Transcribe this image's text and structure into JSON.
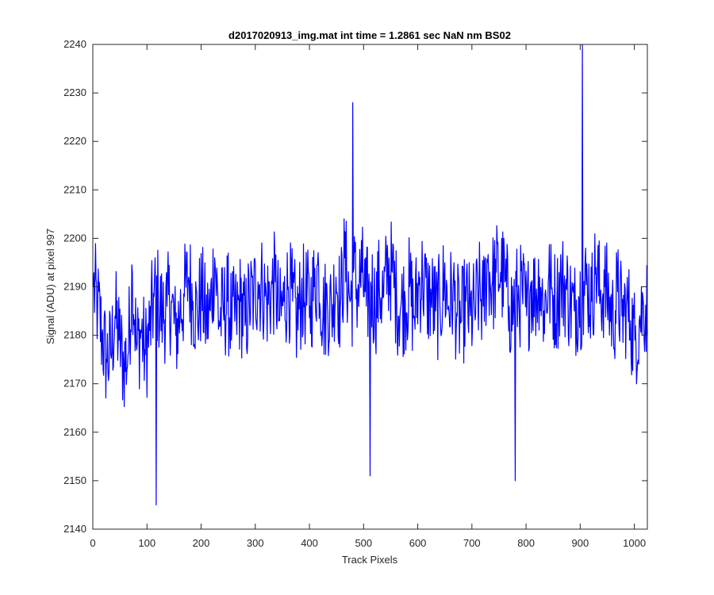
{
  "chart_data": {
    "type": "line",
    "title": "d2017020913_img.mat int time = 1.2861 sec  NaN nm BS02",
    "xlabel": "Track Pixels",
    "ylabel": "Signal (ADU) at pixel 997",
    "xlim": [
      0,
      1024
    ],
    "ylim": [
      2140,
      2240
    ],
    "xticks": [
      0,
      100,
      200,
      300,
      400,
      500,
      600,
      700,
      800,
      900,
      1000
    ],
    "yticks": [
      2140,
      2150,
      2160,
      2170,
      2180,
      2190,
      2200,
      2210,
      2220,
      2230,
      2240
    ],
    "grid": false,
    "line_color": "#0000ff",
    "series": [
      {
        "name": "",
        "x_start": 1,
        "x_step": 8,
        "values": [
          2190,
          2186,
          2180,
          2175,
          2176,
          2184,
          2179,
          2174,
          2176,
          2193,
          2177,
          2181,
          2176,
          2181,
          2188,
          2187,
          2184,
          2186,
          2187,
          2180,
          2185,
          2188,
          2192,
          2187,
          2184,
          2189,
          2183,
          2185,
          2196,
          2183,
          2185,
          2187,
          2183,
          2184,
          2187,
          2182,
          2187,
          2188,
          2191,
          2190,
          2187,
          2189,
          2191,
          2183,
          2187,
          2190,
          2187,
          2183,
          2188,
          2188,
          2186,
          2190,
          2194,
          2184,
          2187,
          2185,
          2192,
          2186,
          2196,
          2189,
          2193,
          2189,
          2193,
          2186,
          2191,
          2186,
          2190,
          2188,
          2194,
          2193,
          2187,
          2186,
          2187,
          2190,
          2184,
          2190,
          2192,
          2188,
          2188,
          2185,
          2186,
          2191,
          2186,
          2189,
          2184,
          2183,
          2187,
          2184,
          2185,
          2189,
          2186,
          2195,
          2190,
          2193,
          2193,
          2191,
          2186,
          2185,
          2187,
          2189,
          2184,
          2191,
          2188,
          2192,
          2185,
          2191,
          2188,
          2187,
          2191,
          2190,
          2187,
          2185,
          2188,
          2189,
          2191,
          2187,
          2194,
          2188,
          2190,
          2187,
          2183,
          2189,
          2184,
          2186,
          2183,
          2179,
          2183,
          2186
        ],
        "notable_points": [
          {
            "x": 117,
            "y": 2145
          },
          {
            "x": 480,
            "y": 2228
          },
          {
            "x": 512,
            "y": 2151
          },
          {
            "x": 780,
            "y": 2150
          },
          {
            "x": 904,
            "y": 2240
          }
        ]
      }
    ]
  }
}
